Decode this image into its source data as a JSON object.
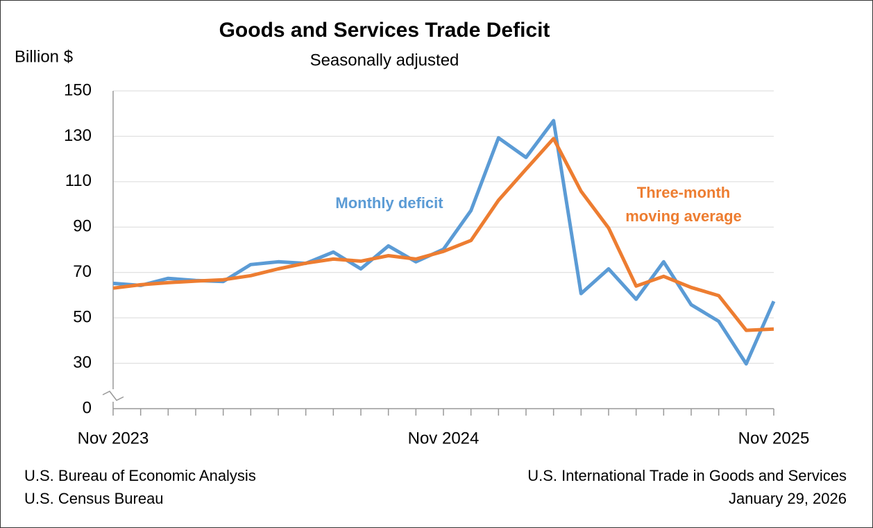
{
  "chart_data": {
    "type": "line",
    "title": "Goods and Services Trade Deficit",
    "subtitle": "Seasonally adjusted",
    "y_label": "Billion $",
    "categories": [
      "Nov 2023",
      null,
      null,
      null,
      null,
      null,
      null,
      null,
      null,
      null,
      null,
      null,
      "Nov 2024",
      null,
      null,
      null,
      null,
      null,
      null,
      null,
      null,
      null,
      null,
      null,
      "Nov 2025"
    ],
    "series": [
      {
        "name": "Monthly deficit",
        "color": "#5b9bd5",
        "values": [
          65.2,
          64.3,
          67.4,
          66.5,
          66,
          73.5,
          74.7,
          74,
          79,
          71.6,
          81.7,
          74.7,
          80.2,
          97.3,
          129.3,
          120.7,
          136.9,
          60.7,
          71.6,
          58.2,
          74.7,
          55.8,
          48.5,
          29.6,
          57.3
        ]
      },
      {
        "name": "Three-month moving average",
        "color": "#ed7d31",
        "values": [
          63.1,
          64.6,
          65.5,
          66.2,
          66.8,
          68.6,
          71.6,
          74.1,
          75.9,
          75,
          77.4,
          75.9,
          79.3,
          84.1,
          101.8,
          115.5,
          129,
          105.8,
          89.6,
          64,
          68.3,
          63.4,
          59.8,
          44.5,
          45.1
        ]
      }
    ],
    "ylim": [
      0,
      150
    ],
    "yticks": [
      0,
      30,
      50,
      70,
      90,
      110,
      130,
      150
    ],
    "y_axis_break": true,
    "grid": true,
    "footer_left": [
      "U.S. Bureau of Economic Analysis",
      "U.S. Census Bureau"
    ],
    "footer_right": [
      "U.S. International Trade in Goods and Services",
      "January 29, 2026"
    ]
  }
}
